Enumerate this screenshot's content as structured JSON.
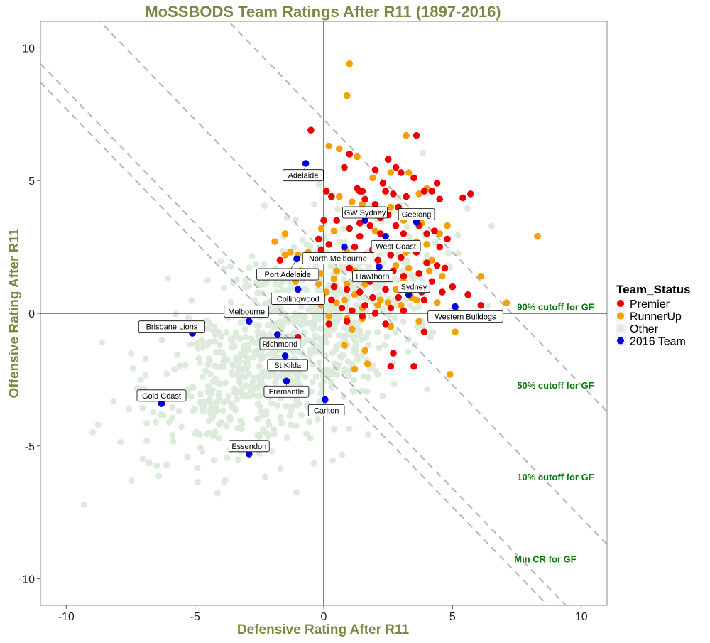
{
  "chart_data": {
    "type": "scatter",
    "title": "MoSSBODS Team Ratings After R11 (1897-2016)",
    "xlabel": "Defensive Rating After R11",
    "ylabel": "Offensive Rating After R11",
    "xlim": [
      -11,
      11
    ],
    "ylim": [
      -11,
      11
    ],
    "xticks": [
      -10,
      -5,
      0,
      5,
      10
    ],
    "yticks": [
      -10,
      -5,
      0,
      5,
      10
    ],
    "grid": false,
    "legend": {
      "title": "Team_Status",
      "placement": "right",
      "entries": [
        {
          "label": "Premier",
          "color": "#ee0000"
        },
        {
          "label": "RunnerUp",
          "color": "#f5a000"
        },
        {
          "label": "Other",
          "color": "#dcebdc"
        },
        {
          "label": "2016 Team",
          "color": "#0000dd"
        }
      ]
    },
    "cutoff_lines": [
      {
        "label": "90% cutoff for GF",
        "total": 7.3,
        "label_at": [
          9.0,
          0.25
        ]
      },
      {
        "label": "50% cutoff for GF",
        "total": 2.3,
        "label_at": [
          9.0,
          -2.7
        ]
      },
      {
        "label": "10% cutoff for GF",
        "total": -1.6,
        "label_at": [
          9.0,
          -6.15
        ]
      },
      {
        "label": "Min CR for GF",
        "total": -2.3,
        "label_at": [
          8.6,
          -9.25
        ]
      }
    ],
    "teams_2016": [
      {
        "team": "Adelaide",
        "x": -0.7,
        "y": 5.65,
        "label_at": [
          -0.8,
          5.2
        ]
      },
      {
        "team": "GW Sydney",
        "x": 1.6,
        "y": 3.5,
        "label_at": [
          1.6,
          3.8
        ]
      },
      {
        "team": "Geelong",
        "x": 3.6,
        "y": 3.45,
        "label_at": [
          3.6,
          3.73
        ]
      },
      {
        "team": "West Coast",
        "x": 2.4,
        "y": 2.9,
        "label_at": [
          2.8,
          2.53
        ]
      },
      {
        "team": "North Melbourne",
        "x": 0.8,
        "y": 2.5,
        "label_at": [
          0.55,
          2.07
        ]
      },
      {
        "team": "Port Adelaide",
        "x": -1.05,
        "y": 2.05,
        "label_at": [
          -1.4,
          1.47
        ]
      },
      {
        "team": "Hawthorn",
        "x": 2.15,
        "y": 1.75,
        "label_at": [
          1.9,
          1.4
        ]
      },
      {
        "team": "Sydney",
        "x": 3.3,
        "y": 0.7,
        "label_at": [
          3.5,
          1.0
        ]
      },
      {
        "team": "Collingwood",
        "x": -1.0,
        "y": 0.9,
        "label_at": [
          -1.0,
          0.55
        ]
      },
      {
        "team": "Western Bulldogs",
        "x": 5.1,
        "y": 0.25,
        "label_at": [
          5.5,
          -0.12
        ]
      },
      {
        "team": "Melbourne",
        "x": -2.9,
        "y": -0.3,
        "label_at": [
          -3.0,
          0.07
        ]
      },
      {
        "team": "Brisbane Lions",
        "x": -5.1,
        "y": -0.75,
        "label_at": [
          -5.9,
          -0.5
        ]
      },
      {
        "team": "Richmond",
        "x": -1.8,
        "y": -0.8,
        "label_at": [
          -1.7,
          -1.15
        ]
      },
      {
        "team": "St Kilda",
        "x": -1.5,
        "y": -1.6,
        "label_at": [
          -1.4,
          -1.95
        ]
      },
      {
        "team": "Fremantle",
        "x": -1.45,
        "y": -2.55,
        "label_at": [
          -1.45,
          -2.95
        ]
      },
      {
        "team": "Carlton",
        "x": 0.05,
        "y": -3.25,
        "label_at": [
          0.1,
          -3.65
        ]
      },
      {
        "team": "Gold Coast",
        "x": -6.3,
        "y": -3.4,
        "label_at": [
          -6.3,
          -3.1
        ]
      },
      {
        "team": "Essendon",
        "x": -2.9,
        "y": -5.3,
        "label_at": [
          -2.9,
          -5.0
        ]
      }
    ],
    "premiers": [
      [
        -0.5,
        6.9
      ],
      [
        2.5,
        5.8
      ],
      [
        2.8,
        5.5
      ],
      [
        3.5,
        5.1
      ],
      [
        3.6,
        6.7
      ],
      [
        4.4,
        4.9
      ],
      [
        5.7,
        4.5
      ],
      [
        5.4,
        4.35
      ],
      [
        1.0,
        6.0
      ],
      [
        1.3,
        4.7
      ],
      [
        1.4,
        4.6
      ],
      [
        1.5,
        4.6
      ],
      [
        1.6,
        4.3
      ],
      [
        2.0,
        4.1
      ],
      [
        2.3,
        4.9
      ],
      [
        2.4,
        4.6
      ],
      [
        2.7,
        4.5
      ],
      [
        3.2,
        4.4
      ],
      [
        3.9,
        4.6
      ],
      [
        4.2,
        4.6
      ],
      [
        4.5,
        4.3
      ],
      [
        2.9,
        4.0
      ],
      [
        0.8,
        5.5
      ],
      [
        2.2,
        3.6
      ],
      [
        0.0,
        3.5
      ],
      [
        0.5,
        3.5
      ],
      [
        1.0,
        3.2
      ],
      [
        1.4,
        3.4
      ],
      [
        1.8,
        3.3
      ],
      [
        2.2,
        3.0
      ],
      [
        2.5,
        3.7
      ],
      [
        2.8,
        3.3
      ],
      [
        3.1,
        3.0
      ],
      [
        3.3,
        3.8
      ],
      [
        3.7,
        3.3
      ],
      [
        4.0,
        3.0
      ],
      [
        4.3,
        3.1
      ],
      [
        4.5,
        2.5
      ],
      [
        4.8,
        2.8
      ],
      [
        -0.2,
        2.8
      ],
      [
        -0.1,
        2.4
      ],
      [
        0.2,
        2.6
      ],
      [
        0.8,
        2.2
      ],
      [
        1.2,
        2.5
      ],
      [
        1.6,
        2.2
      ],
      [
        1.9,
        2.4
      ],
      [
        2.1,
        2.0
      ],
      [
        2.6,
        2.2
      ],
      [
        3.0,
        2.1
      ],
      [
        3.6,
        2.3
      ],
      [
        4.0,
        1.9
      ],
      [
        4.4,
        1.8
      ],
      [
        4.7,
        1.7
      ],
      [
        -1.7,
        2.0
      ],
      [
        1.0,
        1.7
      ],
      [
        1.5,
        1.5
      ],
      [
        1.8,
        1.2
      ],
      [
        2.3,
        1.4
      ],
      [
        2.7,
        1.6
      ],
      [
        3.1,
        1.4
      ],
      [
        3.7,
        1.5
      ],
      [
        4.2,
        1.2
      ],
      [
        0.4,
        1.0
      ],
      [
        0.9,
        0.9
      ],
      [
        1.4,
        0.8
      ],
      [
        1.9,
        0.6
      ],
      [
        2.4,
        0.9
      ],
      [
        2.9,
        0.6
      ],
      [
        3.3,
        1.0
      ],
      [
        3.8,
        0.8
      ],
      [
        4.6,
        0.8
      ],
      [
        5.0,
        1.0
      ],
      [
        5.6,
        0.7
      ],
      [
        6.1,
        0.3
      ],
      [
        0.3,
        0.5
      ],
      [
        0.7,
        0.2
      ],
      [
        1.1,
        0.1
      ],
      [
        1.6,
        0.3
      ],
      [
        2.0,
        0.0
      ],
      [
        2.6,
        0.2
      ],
      [
        3.1,
        0.1
      ],
      [
        3.9,
        0.5
      ],
      [
        0.2,
        -0.4
      ],
      [
        0.9,
        -0.3
      ],
      [
        1.5,
        -0.1
      ],
      [
        2.4,
        -0.4
      ],
      [
        3.9,
        -0.7
      ],
      [
        -1.0,
        -0.9
      ],
      [
        2.7,
        -1.5
      ],
      [
        2.6,
        -2.0
      ],
      [
        3.5,
        -2.0
      ],
      [
        0.3,
        4.4
      ],
      [
        0.1,
        4.6
      ],
      [
        2.0,
        5.4
      ],
      [
        3.0,
        5.3
      ],
      [
        1.4,
        2.9
      ]
    ],
    "runnerups": [
      [
        1.0,
        9.4
      ],
      [
        0.9,
        8.2
      ],
      [
        3.2,
        6.7
      ],
      [
        0.2,
        6.3
      ],
      [
        0.6,
        6.2
      ],
      [
        1.3,
        5.9
      ],
      [
        2.6,
        5.3
      ],
      [
        3.3,
        5.3
      ],
      [
        4.0,
        4.7
      ],
      [
        1.9,
        5.1
      ],
      [
        0.6,
        4.4
      ],
      [
        1.1,
        4.2
      ],
      [
        3.7,
        4.5
      ],
      [
        1.5,
        4.1
      ],
      [
        2.6,
        4.0
      ],
      [
        3.1,
        3.5
      ],
      [
        3.8,
        3.4
      ],
      [
        4.5,
        3.0
      ],
      [
        4.8,
        3.3
      ],
      [
        -1.5,
        3.0
      ],
      [
        -0.1,
        3.2
      ],
      [
        0.4,
        3.1
      ],
      [
        2.0,
        3.1
      ],
      [
        3.6,
        2.7
      ],
      [
        4.0,
        2.6
      ],
      [
        -1.9,
        2.7
      ],
      [
        -1.3,
        2.3
      ],
      [
        -1.0,
        2.2
      ],
      [
        -0.6,
        2.3
      ],
      [
        0.9,
        2.3
      ],
      [
        2.2,
        2.5
      ],
      [
        3.2,
        2.3
      ],
      [
        -1.5,
        2.2
      ],
      [
        0.0,
        2.0
      ],
      [
        1.3,
        2.0
      ],
      [
        2.8,
        1.8
      ],
      [
        4.2,
        2.0
      ],
      [
        -0.1,
        1.5
      ],
      [
        0.5,
        1.6
      ],
      [
        1.2,
        1.6
      ],
      [
        2.5,
        1.5
      ],
      [
        3.3,
        1.7
      ],
      [
        4.1,
        1.6
      ],
      [
        -0.2,
        1.1
      ],
      [
        0.4,
        1.3
      ],
      [
        0.9,
        1.1
      ],
      [
        1.6,
        1.1
      ],
      [
        2.0,
        1.4
      ],
      [
        3.1,
        1.2
      ],
      [
        0.1,
        0.8
      ],
      [
        0.8,
        0.5
      ],
      [
        1.2,
        0.7
      ],
      [
        2.2,
        0.5
      ],
      [
        2.8,
        0.9
      ],
      [
        3.4,
        0.6
      ],
      [
        -0.1,
        0.3
      ],
      [
        0.5,
        0.4
      ],
      [
        1.5,
        0.2
      ],
      [
        2.1,
        0.3
      ],
      [
        2.5,
        0.4
      ],
      [
        3.0,
        0.3
      ],
      [
        3.6,
        0.5
      ],
      [
        4.4,
        0.4
      ],
      [
        6.1,
        1.4
      ],
      [
        7.1,
        0.4
      ],
      [
        8.3,
        2.9
      ],
      [
        -1.1,
        1.2
      ],
      [
        -1.5,
        0.6
      ],
      [
        -0.5,
        0.5
      ],
      [
        0.9,
        -0.2
      ],
      [
        1.5,
        -0.2
      ],
      [
        2.6,
        -0.5
      ],
      [
        3.7,
        -0.3
      ],
      [
        5.1,
        -0.7
      ],
      [
        0.8,
        -1.2
      ],
      [
        1.6,
        -1.4
      ],
      [
        1.7,
        -1.9
      ],
      [
        1.2,
        -2.1
      ],
      [
        4.9,
        -2.3
      ],
      [
        0.2,
        -0.1
      ],
      [
        1.1,
        -0.6
      ],
      [
        -0.9,
        1.6
      ],
      [
        0.3,
        2.1
      ],
      [
        4.6,
        1.4
      ]
    ],
    "others_generated": "approximately 900 pale-green points forming the historical cloud (approx. x -10 to 6, y -7 to 6)"
  }
}
